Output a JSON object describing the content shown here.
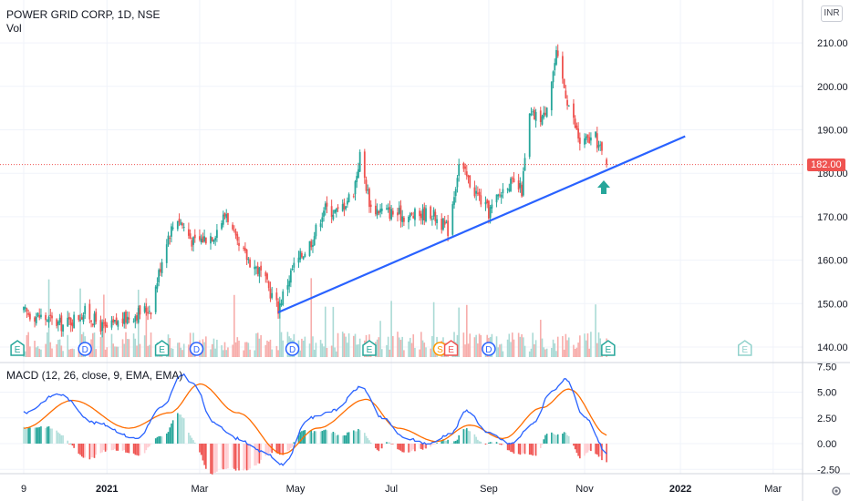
{
  "header": {
    "symbol_line": "POWER GRID CORP, 1D, NSE",
    "volume_label": "Vol",
    "currency": "INR"
  },
  "price_axis": {
    "ticks": [
      "210.00",
      "200.00",
      "190.00",
      "180.00",
      "170.00",
      "160.00",
      "150.00",
      "140.00"
    ],
    "last_price": "182.00"
  },
  "macd_axis": {
    "title": "MACD (12, 26, close, 9, EMA, EMA)",
    "ticks": [
      "7.50",
      "5.00",
      "2.50",
      "0.00",
      "-2.50"
    ]
  },
  "time_axis": {
    "ticks": [
      "9",
      "2021",
      "Mar",
      "May",
      "Jul",
      "Sep",
      "Nov",
      "2022",
      "Mar"
    ]
  },
  "events": [
    {
      "type": "E",
      "label": "E"
    },
    {
      "type": "D",
      "label": "D"
    },
    {
      "type": "E",
      "label": "E"
    },
    {
      "type": "D",
      "label": "D"
    },
    {
      "type": "D",
      "label": "D"
    },
    {
      "type": "E",
      "label": "E"
    },
    {
      "type": "S",
      "label": "S"
    },
    {
      "type": "E",
      "label": "E"
    },
    {
      "type": "D",
      "label": "D"
    },
    {
      "type": "E",
      "label": "E"
    },
    {
      "type": "E",
      "label": "E"
    }
  ],
  "colors": {
    "up": "#26a69a",
    "down": "#ef5350",
    "trendline": "#2962ff",
    "macd_line": "#2962ff",
    "signal_line": "#ff6d00",
    "arrow": "#26a69a",
    "event_blue": "#2962ff",
    "event_green": "#26a69a",
    "event_orange": "#ff9800",
    "event_red": "#ef5350"
  },
  "chart_data": [
    {
      "type": "candlestick",
      "title": "POWER GRID CORP, 1D, NSE",
      "ylim": [
        138,
        213
      ],
      "x_range": [
        "2020-11-09",
        "2022-03-25"
      ],
      "anchors": [
        {
          "date": "2020-11-09",
          "close": 148
        },
        {
          "date": "2020-11-20",
          "close": 147
        },
        {
          "date": "2020-12-04",
          "close": 145
        },
        {
          "date": "2020-12-18",
          "close": 148
        },
        {
          "date": "2020-12-31",
          "close": 144
        },
        {
          "date": "2021-01-15",
          "close": 147
        },
        {
          "date": "2021-01-29",
          "close": 149
        },
        {
          "date": "2021-02-08",
          "close": 165
        },
        {
          "date": "2021-02-15",
          "close": 170
        },
        {
          "date": "2021-02-25",
          "close": 164
        },
        {
          "date": "2021-03-10",
          "close": 166
        },
        {
          "date": "2021-03-18",
          "close": 171
        },
        {
          "date": "2021-03-25",
          "close": 163
        },
        {
          "date": "2021-04-09",
          "close": 157
        },
        {
          "date": "2021-04-20",
          "close": 149
        },
        {
          "date": "2021-04-29",
          "close": 158
        },
        {
          "date": "2021-05-12",
          "close": 165
        },
        {
          "date": "2021-05-19",
          "close": 172
        },
        {
          "date": "2021-05-28",
          "close": 171
        },
        {
          "date": "2021-06-07",
          "close": 176
        },
        {
          "date": "2021-06-11",
          "close": 184
        },
        {
          "date": "2021-06-18",
          "close": 172
        },
        {
          "date": "2021-06-30",
          "close": 171
        },
        {
          "date": "2021-07-12",
          "close": 170
        },
        {
          "date": "2021-07-26",
          "close": 171
        },
        {
          "date": "2021-08-06",
          "close": 167
        },
        {
          "date": "2021-08-13",
          "close": 182
        },
        {
          "date": "2021-08-23",
          "close": 176
        },
        {
          "date": "2021-09-01",
          "close": 171
        },
        {
          "date": "2021-09-13",
          "close": 178
        },
        {
          "date": "2021-09-22",
          "close": 176
        },
        {
          "date": "2021-09-27",
          "close": 193
        },
        {
          "date": "2021-10-06",
          "close": 193
        },
        {
          "date": "2021-10-14",
          "close": 207
        },
        {
          "date": "2021-10-21",
          "close": 197
        },
        {
          "date": "2021-10-29",
          "close": 187
        },
        {
          "date": "2021-11-08",
          "close": 188
        },
        {
          "date": "2021-11-15",
          "close": 182
        }
      ],
      "trendline": {
        "from": {
          "date": "2021-04-20",
          "price": 148
        },
        "to": {
          "date": "2022-01-04",
          "price": 188.5
        }
      },
      "last_price": 182.0,
      "annotation": "up-arrow below last candle"
    },
    {
      "type": "bar",
      "title": "Vol",
      "note": "volume histogram overlay at bottom of price pane"
    },
    {
      "type": "line",
      "title": "MACD (12, 26, close, 9, EMA, EMA)",
      "ylim": [
        -3.2,
        7.6
      ],
      "series": [
        {
          "name": "MACD",
          "x": [
            "2020-11-09",
            "2020-12-01",
            "2020-12-25",
            "2021-01-20",
            "2021-02-05",
            "2021-02-18",
            "2021-02-25",
            "2021-03-10",
            "2021-03-25",
            "2021-04-10",
            "2021-04-23",
            "2021-05-10",
            "2021-05-25",
            "2021-06-12",
            "2021-06-25",
            "2021-07-10",
            "2021-07-25",
            "2021-08-08",
            "2021-08-18",
            "2021-09-01",
            "2021-09-15",
            "2021-09-30",
            "2021-10-10",
            "2021-10-20",
            "2021-11-01",
            "2021-11-16"
          ],
          "values": [
            3.0,
            4.8,
            2.0,
            0.5,
            3.5,
            6.7,
            5.8,
            2.0,
            0.5,
            -0.8,
            -2.0,
            2.5,
            3.2,
            5.5,
            2.5,
            0.5,
            0.0,
            1.0,
            3.2,
            1.0,
            0.0,
            2.0,
            5.0,
            6.2,
            2.5,
            -1.0
          ]
        },
        {
          "name": "Signal",
          "x": [
            "2020-11-09",
            "2020-12-10",
            "2021-01-15",
            "2021-02-10",
            "2021-03-01",
            "2021-03-25",
            "2021-04-23",
            "2021-05-15",
            "2021-06-15",
            "2021-07-05",
            "2021-07-30",
            "2021-08-20",
            "2021-09-10",
            "2021-10-05",
            "2021-10-22",
            "2021-11-16"
          ],
          "values": [
            1.5,
            4.2,
            1.5,
            3.0,
            5.8,
            3.0,
            -1.0,
            1.5,
            4.3,
            1.5,
            0.2,
            1.8,
            0.5,
            3.5,
            5.3,
            0.8
          ]
        }
      ]
    }
  ]
}
